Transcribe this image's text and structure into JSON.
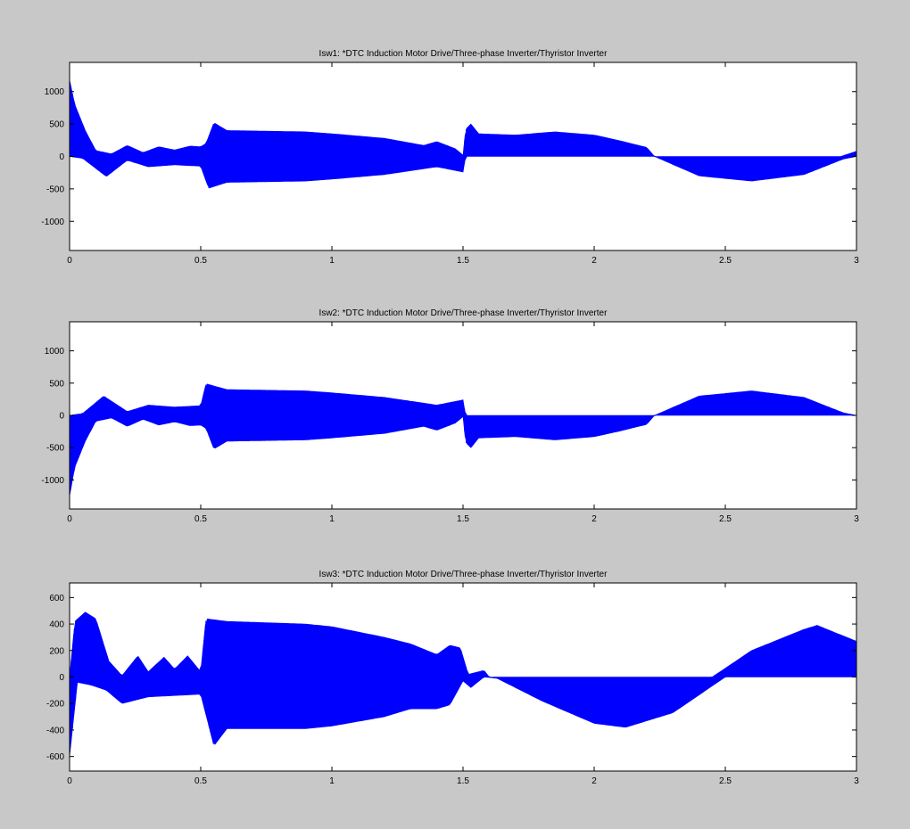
{
  "figure": {
    "background": "#c8c8c8",
    "plot_background": "#ffffff",
    "trace_color": "#0000ff"
  },
  "chart_data": [
    {
      "type": "line",
      "title": "Isw1: *DTC Induction Motor Drive/Three-phase Inverter/Thyristor Inverter",
      "xlabel": "",
      "ylabel": "",
      "xlim": [
        0,
        3
      ],
      "ylim": [
        -1450,
        1450
      ],
      "x_ticks": [
        0,
        0.5,
        1,
        1.5,
        2,
        2.5,
        3
      ],
      "x_tick_labels": [
        "0",
        "0.5",
        "1",
        "1.5",
        "2",
        "2.5",
        "3"
      ],
      "y_ticks": [
        1000,
        500,
        0,
        -500,
        -1000
      ],
      "y_tick_labels": [
        "1000",
        "500",
        "0",
        "-500",
        "-1000"
      ],
      "grid": false,
      "series": [
        {
          "color": "#0000ff",
          "envelope_upper": [
            [
              0,
              1180
            ],
            [
              0.02,
              800
            ],
            [
              0.06,
              400
            ],
            [
              0.1,
              90
            ],
            [
              0.16,
              40
            ],
            [
              0.22,
              170
            ],
            [
              0.28,
              60
            ],
            [
              0.34,
              150
            ],
            [
              0.4,
              100
            ],
            [
              0.46,
              160
            ],
            [
              0.5,
              150
            ],
            [
              0.52,
              200
            ],
            [
              0.55,
              520
            ],
            [
              0.6,
              400
            ],
            [
              0.9,
              380
            ],
            [
              1.0,
              350
            ],
            [
              1.2,
              280
            ],
            [
              1.35,
              170
            ],
            [
              1.4,
              230
            ],
            [
              1.47,
              120
            ],
            [
              1.5,
              20
            ],
            [
              1.51,
              420
            ],
            [
              1.53,
              500
            ],
            [
              1.56,
              350
            ],
            [
              1.7,
              330
            ],
            [
              1.85,
              380
            ],
            [
              2.0,
              330
            ],
            [
              2.1,
              240
            ],
            [
              2.2,
              140
            ],
            [
              2.23,
              0
            ],
            [
              2.4,
              0
            ],
            [
              2.94,
              0
            ],
            [
              3,
              80
            ]
          ],
          "envelope_lower": [
            [
              0,
              0
            ],
            [
              0.05,
              -30
            ],
            [
              0.14,
              -310
            ],
            [
              0.22,
              -60
            ],
            [
              0.3,
              -160
            ],
            [
              0.4,
              -130
            ],
            [
              0.5,
              -150
            ],
            [
              0.53,
              -490
            ],
            [
              0.6,
              -400
            ],
            [
              0.9,
              -380
            ],
            [
              1.0,
              -350
            ],
            [
              1.2,
              -280
            ],
            [
              1.3,
              -220
            ],
            [
              1.4,
              -160
            ],
            [
              1.45,
              -200
            ],
            [
              1.5,
              -240
            ],
            [
              1.51,
              0
            ],
            [
              2.23,
              0
            ],
            [
              2.4,
              -300
            ],
            [
              2.6,
              -380
            ],
            [
              2.8,
              -280
            ],
            [
              2.95,
              -40
            ],
            [
              3,
              0
            ]
          ]
        }
      ]
    },
    {
      "type": "line",
      "title": "Isw2: *DTC Induction Motor Drive/Three-phase Inverter/Thyristor Inverter",
      "xlabel": "",
      "ylabel": "",
      "xlim": [
        0,
        3
      ],
      "ylim": [
        -1450,
        1450
      ],
      "x_ticks": [
        0,
        0.5,
        1,
        1.5,
        2,
        2.5,
        3
      ],
      "x_tick_labels": [
        "0",
        "0.5",
        "1",
        "1.5",
        "2",
        "2.5",
        "3"
      ],
      "y_ticks": [
        1000,
        500,
        0,
        -500,
        -1000
      ],
      "y_tick_labels": [
        "1000",
        "500",
        "0",
        "-500",
        "-1000"
      ],
      "grid": false,
      "series": [
        {
          "color": "#0000ff",
          "envelope_upper": [
            [
              0,
              0
            ],
            [
              0.05,
              30
            ],
            [
              0.13,
              300
            ],
            [
              0.22,
              60
            ],
            [
              0.3,
              160
            ],
            [
              0.4,
              130
            ],
            [
              0.5,
              150
            ],
            [
              0.52,
              490
            ],
            [
              0.6,
              400
            ],
            [
              0.9,
              380
            ],
            [
              1.0,
              350
            ],
            [
              1.2,
              280
            ],
            [
              1.3,
              220
            ],
            [
              1.4,
              160
            ],
            [
              1.45,
              200
            ],
            [
              1.5,
              240
            ],
            [
              1.51,
              0
            ],
            [
              2.23,
              0
            ],
            [
              2.4,
              300
            ],
            [
              2.6,
              380
            ],
            [
              2.8,
              280
            ],
            [
              2.95,
              40
            ],
            [
              3,
              0
            ]
          ],
          "envelope_lower": [
            [
              0,
              -1250
            ],
            [
              0.02,
              -800
            ],
            [
              0.06,
              -400
            ],
            [
              0.1,
              -90
            ],
            [
              0.16,
              -40
            ],
            [
              0.22,
              -170
            ],
            [
              0.28,
              -60
            ],
            [
              0.34,
              -150
            ],
            [
              0.4,
              -100
            ],
            [
              0.46,
              -160
            ],
            [
              0.5,
              -150
            ],
            [
              0.52,
              -200
            ],
            [
              0.55,
              -520
            ],
            [
              0.6,
              -400
            ],
            [
              0.9,
              -380
            ],
            [
              1.0,
              -350
            ],
            [
              1.2,
              -280
            ],
            [
              1.35,
              -170
            ],
            [
              1.4,
              -230
            ],
            [
              1.47,
              -120
            ],
            [
              1.5,
              -20
            ],
            [
              1.51,
              -420
            ],
            [
              1.53,
              -500
            ],
            [
              1.56,
              -350
            ],
            [
              1.7,
              -330
            ],
            [
              1.85,
              -380
            ],
            [
              2.0,
              -330
            ],
            [
              2.1,
              -240
            ],
            [
              2.2,
              -140
            ],
            [
              2.23,
              0
            ],
            [
              3,
              0
            ]
          ]
        }
      ]
    },
    {
      "type": "line",
      "title": "Isw3: *DTC Induction Motor Drive/Three-phase Inverter/Thyristor Inverter",
      "xlabel": "",
      "ylabel": "",
      "xlim": [
        0,
        3
      ],
      "ylim": [
        -710,
        710
      ],
      "x_ticks": [
        0,
        0.5,
        1,
        1.5,
        2,
        2.5,
        3
      ],
      "x_tick_labels": [
        "0",
        "0.5",
        "1",
        "1.5",
        "2",
        "2.5",
        "3"
      ],
      "y_ticks": [
        600,
        400,
        200,
        0,
        -200,
        -400,
        -600
      ],
      "y_tick_labels": [
        "600",
        "400",
        "200",
        "0",
        "-200",
        "-400",
        "-600"
      ],
      "grid": false,
      "series": [
        {
          "color": "#0000ff",
          "envelope_upper": [
            [
              0,
              0
            ],
            [
              0.02,
              420
            ],
            [
              0.06,
              490
            ],
            [
              0.1,
              440
            ],
            [
              0.15,
              120
            ],
            [
              0.2,
              10
            ],
            [
              0.26,
              160
            ],
            [
              0.3,
              40
            ],
            [
              0.36,
              150
            ],
            [
              0.4,
              60
            ],
            [
              0.45,
              160
            ],
            [
              0.5,
              40
            ],
            [
              0.52,
              440
            ],
            [
              0.6,
              420
            ],
            [
              0.9,
              400
            ],
            [
              1.0,
              380
            ],
            [
              1.2,
              300
            ],
            [
              1.3,
              250
            ],
            [
              1.4,
              170
            ],
            [
              1.45,
              240
            ],
            [
              1.49,
              220
            ],
            [
              1.52,
              20
            ],
            [
              1.58,
              50
            ],
            [
              1.6,
              0
            ],
            [
              2.45,
              0
            ],
            [
              2.6,
              200
            ],
            [
              2.8,
              360
            ],
            [
              2.85,
              390
            ],
            [
              3,
              270
            ]
          ],
          "envelope_lower": [
            [
              0,
              -600
            ],
            [
              0.03,
              -40
            ],
            [
              0.08,
              -60
            ],
            [
              0.14,
              -100
            ],
            [
              0.2,
              -200
            ],
            [
              0.3,
              -150
            ],
            [
              0.4,
              -140
            ],
            [
              0.5,
              -130
            ],
            [
              0.55,
              -520
            ],
            [
              0.6,
              -390
            ],
            [
              0.9,
              -390
            ],
            [
              1.0,
              -370
            ],
            [
              1.2,
              -300
            ],
            [
              1.3,
              -240
            ],
            [
              1.4,
              -240
            ],
            [
              1.45,
              -210
            ],
            [
              1.5,
              -30
            ],
            [
              1.53,
              -80
            ],
            [
              1.58,
              0
            ],
            [
              1.63,
              -10
            ],
            [
              1.8,
              -180
            ],
            [
              2.0,
              -350
            ],
            [
              2.12,
              -380
            ],
            [
              2.3,
              -270
            ],
            [
              2.5,
              0
            ],
            [
              3,
              0
            ]
          ]
        }
      ]
    }
  ]
}
